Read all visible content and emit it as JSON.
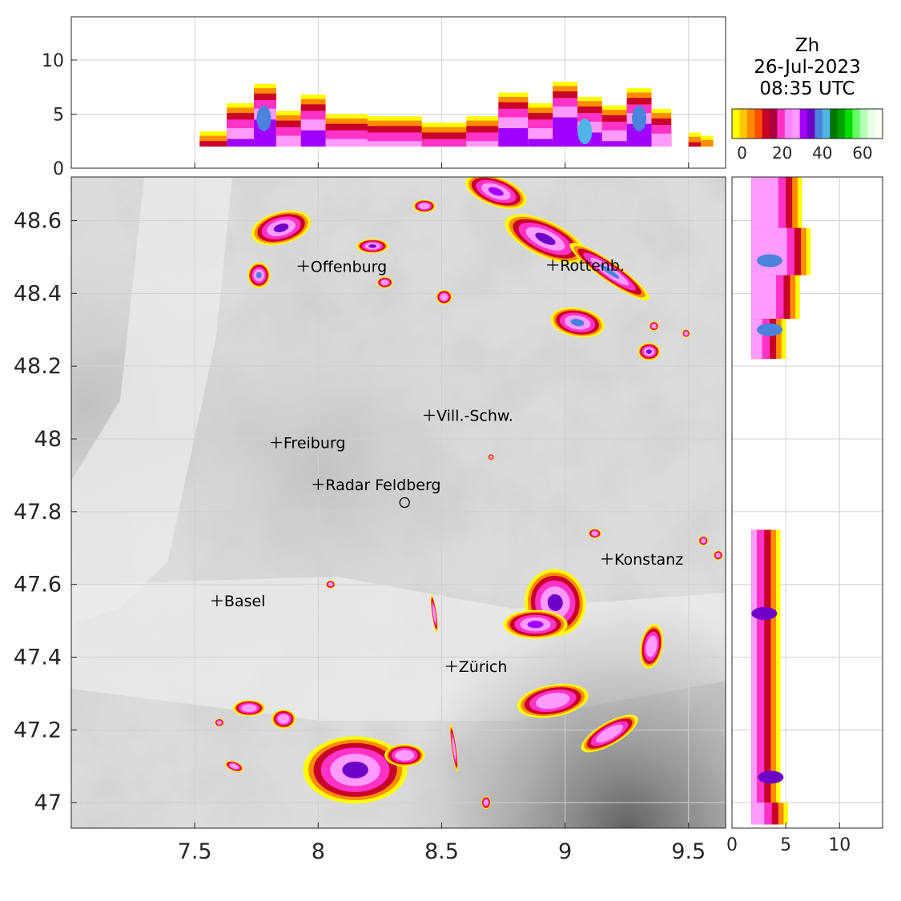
{
  "title": {
    "variable": "Zh",
    "date": "26-Jul-2023",
    "time": "08:35 UTC"
  },
  "colorbar": {
    "colors": [
      "#ffff00",
      "#ffc800",
      "#ff8c00",
      "#ff5000",
      "#c8002a",
      "#aa003c",
      "#ff32c8",
      "#ff82ff",
      "#ff9bff",
      "#a000ff",
      "#6e00c8",
      "#4b82dc",
      "#50b4e6",
      "#007800",
      "#00a000",
      "#00dc00",
      "#64ff64",
      "#b4ffb4",
      "#e6ffe6",
      "#fafff0"
    ],
    "tick_labels": [
      "0",
      "20",
      "40",
      "60"
    ],
    "tick_values": [
      0,
      20,
      40,
      60
    ],
    "range": [
      -5,
      70
    ]
  },
  "map": {
    "lon_range": [
      7.0,
      9.65
    ],
    "lat_range": [
      46.93,
      48.72
    ],
    "lon_ticks": [
      "7.5",
      "8",
      "8.5",
      "9",
      "9.5"
    ],
    "lon_tick_values": [
      7.5,
      8,
      8.5,
      9,
      9.5
    ],
    "lat_ticks": [
      "48.6",
      "48.4",
      "48.2",
      "48",
      "47.8",
      "47.6",
      "47.4",
      "47.2",
      "47"
    ],
    "lat_tick_values": [
      48.6,
      48.4,
      48.2,
      48.0,
      47.8,
      47.6,
      47.4,
      47.2,
      47.0
    ],
    "cities": [
      {
        "name": "Offenburg",
        "lon": 7.94,
        "lat": 48.475
      },
      {
        "name": "Rottenb.",
        "lon": 8.95,
        "lat": 48.478
      },
      {
        "name": "Vill.-Schw.",
        "lon": 8.45,
        "lat": 48.065
      },
      {
        "name": "Freiburg",
        "lon": 7.83,
        "lat": 47.99
      },
      {
        "name": "Radar Feldberg",
        "lon": 8.0,
        "lat": 47.875
      },
      {
        "name": "Konstanz",
        "lon": 9.17,
        "lat": 47.67
      },
      {
        "name": "Basel",
        "lon": 7.59,
        "lat": 47.555
      },
      {
        "name": "Zürich",
        "lon": 8.54,
        "lat": 47.375
      }
    ],
    "radar_marker": {
      "lon": 8.35,
      "lat": 47.825
    }
  },
  "top_panel": {
    "y_ticks": [
      "0",
      "5",
      "10"
    ],
    "y_tick_values": [
      0,
      5,
      10
    ],
    "y_range": [
      0,
      14
    ]
  },
  "right_panel": {
    "x_ticks": [
      "0",
      "5",
      "10"
    ],
    "x_tick_values": [
      0,
      5,
      10
    ],
    "x_range": [
      0,
      14
    ]
  }
}
